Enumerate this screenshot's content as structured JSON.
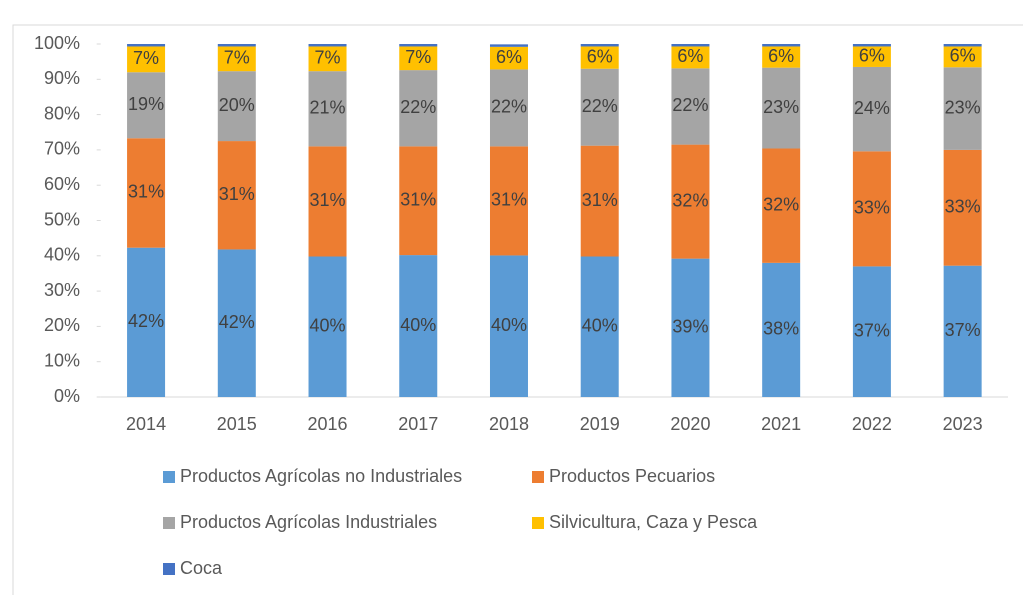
{
  "chart_data": {
    "type": "bar",
    "stacked": true,
    "categories": [
      "2014",
      "2015",
      "2016",
      "2017",
      "2018",
      "2019",
      "2020",
      "2021",
      "2022",
      "2023"
    ],
    "series": [
      {
        "name": "Productos Agrícolas no Industriales",
        "color": "#5b9bd5",
        "values": [
          42.3,
          41.8,
          39.8,
          40.2,
          40.1,
          39.8,
          39.2,
          38.0,
          37.0,
          37.2
        ],
        "value_labels": [
          "42%",
          "42%",
          "40%",
          "40%",
          "40%",
          "40%",
          "39%",
          "38%",
          "37%",
          "37%"
        ]
      },
      {
        "name": "Productos Pecuarios",
        "color": "#ed7d31",
        "values": [
          31.0,
          30.7,
          31.2,
          30.8,
          30.9,
          31.4,
          32.3,
          32.4,
          32.6,
          32.8
        ],
        "value_labels": [
          "31%",
          "31%",
          "31%",
          "31%",
          "31%",
          "31%",
          "32%",
          "32%",
          "33%",
          "33%"
        ]
      },
      {
        "name": "Productos Agrícolas Industriales",
        "color": "#a5a5a5",
        "values": [
          18.7,
          19.8,
          21.3,
          21.6,
          21.8,
          21.8,
          21.6,
          22.9,
          23.9,
          23.4
        ],
        "value_labels": [
          "19%",
          "20%",
          "21%",
          "22%",
          "22%",
          "22%",
          "22%",
          "23%",
          "24%",
          "23%"
        ]
      },
      {
        "name": "Silvicultura, Caza y Pesca",
        "color": "#ffc000",
        "values": [
          7.3,
          7.0,
          7.0,
          6.7,
          6.4,
          6.3,
          6.2,
          6.0,
          5.8,
          5.9
        ],
        "value_labels": [
          "7%",
          "7%",
          "7%",
          "7%",
          "6%",
          "6%",
          "6%",
          "6%",
          "6%",
          "6%"
        ]
      },
      {
        "name": "Coca",
        "color": "#4472c4",
        "values": [
          0.7,
          0.7,
          0.7,
          0.7,
          0.7,
          0.7,
          0.7,
          0.7,
          0.7,
          0.7
        ]
      }
    ],
    "ylim": [
      0,
      100
    ],
    "yticks": [
      {
        "value": 0,
        "label": "0%"
      },
      {
        "value": 10,
        "label": "10%"
      },
      {
        "value": 20,
        "label": "20%"
      },
      {
        "value": 30,
        "label": "30%"
      },
      {
        "value": 40,
        "label": "40%"
      },
      {
        "value": 50,
        "label": "50%"
      },
      {
        "value": 60,
        "label": "60%"
      },
      {
        "value": 70,
        "label": "70%"
      },
      {
        "value": 80,
        "label": "80%"
      },
      {
        "value": 90,
        "label": "90%"
      },
      {
        "value": 100,
        "label": "100%"
      }
    ],
    "legend": "bottom"
  }
}
